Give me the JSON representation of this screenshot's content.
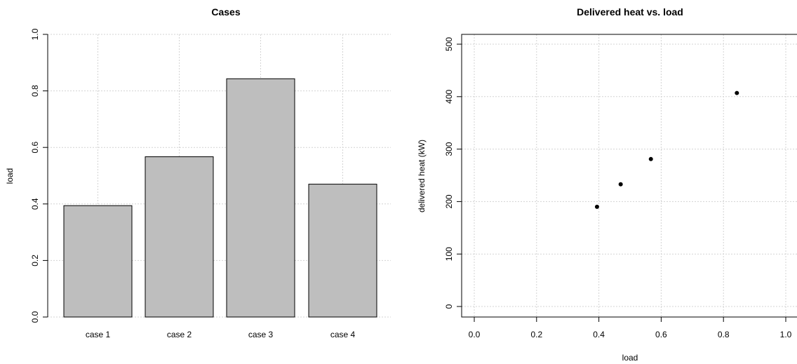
{
  "chart_data": [
    {
      "type": "bar",
      "title": "Cases",
      "xlabel": "",
      "ylabel": "load",
      "categories": [
        "case 1",
        "case 2",
        "case 3",
        "case 4"
      ],
      "values": [
        0.394,
        0.567,
        0.843,
        0.47
      ],
      "ylim": [
        0,
        1
      ],
      "yticks": [
        0.0,
        0.2,
        0.4,
        0.6,
        0.8,
        1.0
      ],
      "ytick_labels": [
        "0.0",
        "0.2",
        "0.4",
        "0.6",
        "0.8",
        "1.0"
      ],
      "bar_color": "#bebebe",
      "grid": true
    },
    {
      "type": "scatter",
      "title": "Delivered heat vs. load",
      "xlabel": "load",
      "ylabel": "delivered heat (kW)",
      "x": [
        0.394,
        0.47,
        0.567,
        0.843
      ],
      "y": [
        190,
        233,
        281,
        407
      ],
      "xlim": [
        0,
        1
      ],
      "ylim": [
        0,
        500
      ],
      "xticks": [
        0.0,
        0.2,
        0.4,
        0.6,
        0.8,
        1.0
      ],
      "xtick_labels": [
        "0.0",
        "0.2",
        "0.4",
        "0.6",
        "0.8",
        "1.0"
      ],
      "yticks": [
        0,
        100,
        200,
        300,
        400,
        500
      ],
      "ytick_labels": [
        "0",
        "100",
        "200",
        "300",
        "400",
        "500"
      ],
      "point_color": "#000000",
      "grid": true
    }
  ]
}
